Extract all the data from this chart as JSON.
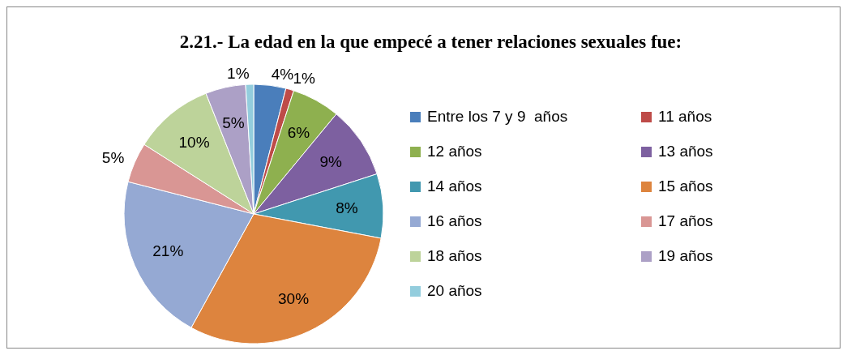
{
  "chart_data": {
    "type": "pie",
    "title": "2.21.- La edad en la que empecé a tener relaciones sexuales fue:",
    "categories": [
      "Entre los 7 y 9  años",
      "11 años",
      "12 años",
      "13 años",
      "14 años",
      "15 años",
      "16 años",
      "17 años",
      "18 años",
      "19 años",
      "20 años"
    ],
    "values": [
      4,
      1,
      6,
      9,
      8,
      30,
      21,
      5,
      10,
      5,
      1
    ],
    "colors": [
      "#4a7ebb",
      "#be4b48",
      "#8eb04f",
      "#7d60a0",
      "#4198af",
      "#dd843e",
      "#95a9d3",
      "#d99694",
      "#bdd39a",
      "#aca0c6",
      "#93cddd"
    ],
    "value_labels": [
      "4%",
      "1%",
      "6%",
      "9%",
      "8%",
      "30%",
      "21%",
      "5%",
      "10%",
      "5%",
      "1%"
    ],
    "legend": "right"
  }
}
